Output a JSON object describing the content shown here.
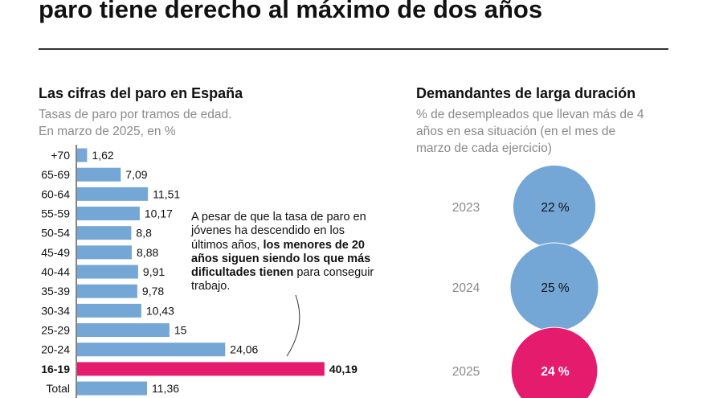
{
  "headline": "paro tiene derecho al máximo de dos años",
  "left": {
    "title": "Las cifras del paro en España",
    "subtitle_1": "Tasas de paro por tramos de edad.",
    "subtitle_2": "En marzo de 2025, en %"
  },
  "right": {
    "title": "Demandantes de larga duración",
    "subtitle_1": "% de desempleados que llevan más de 4",
    "subtitle_2": "años en esa situación (en el mes de",
    "subtitle_3": "marzo de cada ejercicio)"
  },
  "note": {
    "text_1": "A pesar de que la tasa de paro en jóvenes ha descendido en los últimos años, ",
    "bold": "los menores de 20 años siguen siendo los que más dificultades tienen",
    "text_2": " para conseguir trabajo."
  },
  "colors": {
    "bar": "#74a7d6",
    "highlight": "#e51b6e"
  },
  "chart_data": [
    {
      "type": "bar",
      "orientation": "horizontal",
      "title": "Las cifras del paro en España",
      "categories": [
        "+70",
        "65-69",
        "60-64",
        "55-59",
        "50-54",
        "45-49",
        "40-44",
        "35-39",
        "30-34",
        "25-29",
        "20-24",
        "16-19",
        "Total"
      ],
      "values": [
        1.62,
        7.09,
        11.51,
        10.17,
        8.8,
        8.88,
        9.91,
        9.78,
        10.43,
        15,
        24.06,
        40.19,
        11.36
      ],
      "labels": [
        "1,62",
        "7,09",
        "11,51",
        "10,17",
        "8,8",
        "8,88",
        "9,91",
        "9,78",
        "10,43",
        "15",
        "24,06",
        "40,19",
        "11,36"
      ],
      "highlight": "16-19"
    },
    {
      "type": "bubble",
      "title": "Demandantes de larga duración",
      "categories": [
        "2023",
        "2024",
        "2025"
      ],
      "values": [
        22,
        25,
        24
      ],
      "labels": [
        "22 %",
        "25 %",
        "24 %"
      ],
      "highlight": "2025"
    }
  ]
}
